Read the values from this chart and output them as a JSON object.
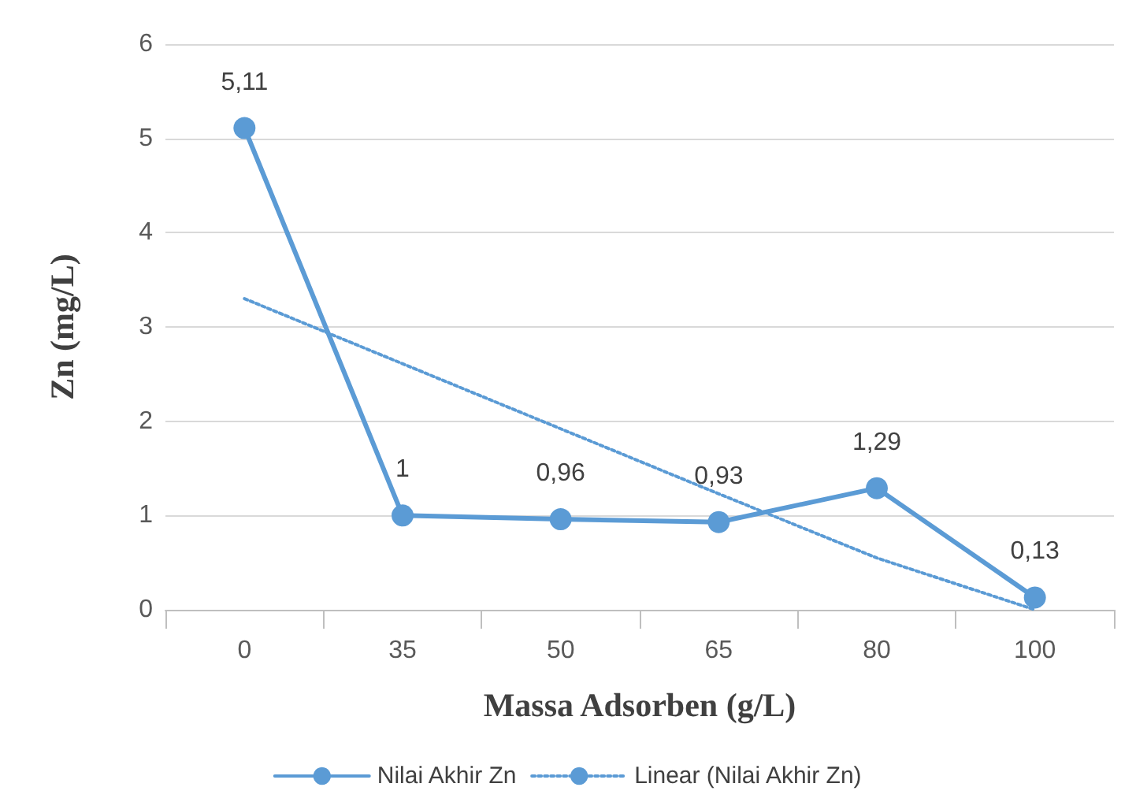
{
  "chart_data": {
    "type": "line",
    "xlabel": "Massa Adsorben (g/L)",
    "ylabel": "Zn (mg/L)",
    "categories": [
      "0",
      "35",
      "50",
      "65",
      "80",
      "100"
    ],
    "series": [
      {
        "name": "Nilai Akhir Zn",
        "color": "#5b9bd5",
        "values": [
          5.11,
          1,
          0.96,
          0.93,
          1.29,
          0.13
        ],
        "value_labels": [
          "5,11",
          "1",
          "0,96",
          "0,93",
          "1,29",
          "0,13"
        ],
        "marker": "circle",
        "line_style": "solid"
      },
      {
        "name": "Linear (Nilai Akhir Zn)",
        "color": "#5b9bd5",
        "values": [
          3.3,
          2.61,
          1.92,
          1.23,
          0.55,
          0
        ],
        "marker": "none",
        "line_style": "dotted"
      }
    ],
    "ylim": [
      0,
      6
    ],
    "yticks": [
      0,
      1,
      2,
      3,
      4,
      5,
      6
    ],
    "grid": "y",
    "legend": "bottom"
  }
}
